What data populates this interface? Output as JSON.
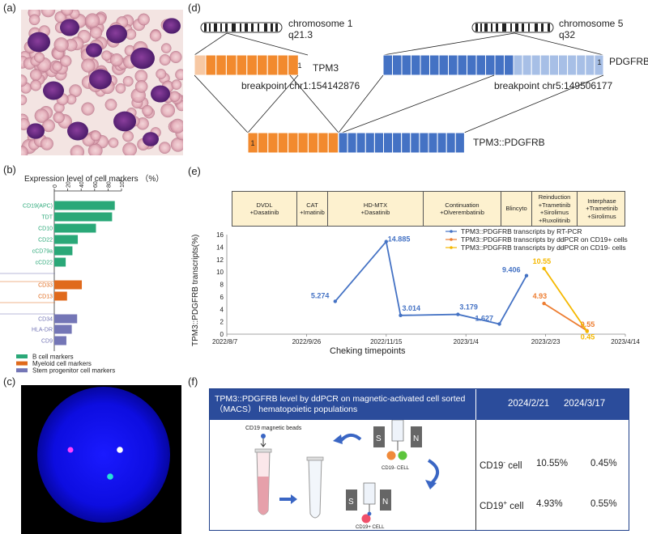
{
  "panels": {
    "a": "(a)",
    "b": "(b)",
    "c": "(c)",
    "d": "(d)",
    "e": "(e)",
    "f": "(f)"
  },
  "colors": {
    "green": "#2aa878",
    "orange": "#e06a1c",
    "purple": "#7476b6",
    "gene_orange": "#f28a2e",
    "gene_blue": "#4472c4",
    "line_blue": "#4472c4",
    "line_orange": "#ed7d31",
    "line_yellow": "#f5b800",
    "header_blue": "#2b4c9b"
  },
  "panel_b": {
    "title": "Expression level of cell markers  （%）",
    "axis_ticks": [
      "0",
      "20",
      "40",
      "60",
      "80",
      "100"
    ],
    "bars": [
      {
        "label": "CD19(APC)",
        "value": 90,
        "group": "green"
      },
      {
        "label": "TDT",
        "value": 86,
        "group": "green"
      },
      {
        "label": "CD10",
        "value": 62,
        "group": "green"
      },
      {
        "label": "CD22",
        "value": 35,
        "group": "green"
      },
      {
        "label": "cCD79a",
        "value": 27,
        "group": "green"
      },
      {
        "label": "cCD22",
        "value": 17,
        "group": "green"
      },
      {
        "label": "CD33",
        "value": 41,
        "group": "orange"
      },
      {
        "label": "CD13",
        "value": 19,
        "group": "orange"
      },
      {
        "label": "CD34",
        "value": 34,
        "group": "purple"
      },
      {
        "label": "HLA-DR",
        "value": 26,
        "group": "purple"
      },
      {
        "label": "CD9",
        "value": 18,
        "group": "purple"
      }
    ],
    "legend": [
      "B cell markers",
      "Myeloid cell markers",
      "Stem progenitor cell markers"
    ]
  },
  "panel_d": {
    "chr1": "chromosome 1",
    "chr1_band": "q21.3",
    "chr5": "chromosome 5",
    "chr5_band": "q32",
    "gene1": "TPM3",
    "gene2": "PDGFRB",
    "fusion": "TPM3::PDGFRB",
    "bp1": "breakpoint chr1:154142876",
    "bp2": "breakpoint chr5:149506177",
    "exon_num": "1"
  },
  "panel_e": {
    "timeline": [
      {
        "label": "DVDL\n+Dasatinib"
      },
      {
        "label": "CAT\n+Imatinib"
      },
      {
        "label": "HD-MTX\n+Dasatinib"
      },
      {
        "label": "Continuation\n+Olverembatinib"
      },
      {
        "label": "Blincyto"
      },
      {
        "label": "Reinduction\n+Trametinib\n+Sirolimus\n+Ruxolitinib"
      },
      {
        "label": "Interphase\n+Trametinib\n+Sirolimus"
      }
    ]
  },
  "chart_data": {
    "type": "line",
    "title": "",
    "xlabel": "Cheking timepoints",
    "ylabel": "TPM3::PDGFRB transcripts(%)",
    "ylim": [
      0,
      16
    ],
    "y_ticks": [
      "0",
      "2",
      "4",
      "6",
      "8",
      "10",
      "12",
      "14",
      "16"
    ],
    "x_tick_labels": [
      "2022/8/7",
      "2022/9/26",
      "2022/11/15",
      "2023/1/4",
      "2023/2/23",
      "2023/4/14"
    ],
    "x_tick_days": [
      0,
      50,
      100,
      150,
      200,
      250
    ],
    "series": [
      {
        "name": "TPM3::PDGFRB transcripts by RT-PCR",
        "color": "#4472c4",
        "x_days": [
          68,
          100,
          109,
          145,
          171,
          188
        ],
        "values": [
          5.274,
          14.885,
          3.014,
          3.179,
          1.627,
          9.406
        ],
        "labels": [
          "5.274",
          "14.885",
          "3.014",
          "3.179",
          "1.627",
          "9.406"
        ]
      },
      {
        "name": "TPM3::PDGFRB transcripts by ddPCR on CD19+ cells",
        "color": "#ed7d31",
        "x_days": [
          199,
          226
        ],
        "values": [
          4.93,
          0.55
        ],
        "labels": [
          "4.93",
          "0.55"
        ]
      },
      {
        "name": "TPM3::PDGFRB transcripts by ddPCR on CD19-  cells",
        "color": "#f5b800",
        "x_days": [
          199,
          226
        ],
        "values": [
          10.55,
          0.45
        ],
        "labels": [
          "10.55",
          "0.45"
        ]
      }
    ]
  },
  "panel_f": {
    "header": "TPM3::PDGFRB level by ddPCR on magnetic-activated cell sorted （MACS） hematopoietic populations",
    "date1": "2024/2/21",
    "date2": "2024/3/17",
    "row1_label": "CD19",
    "row1_sup": "-",
    "row1_suffix": " cell",
    "row1_v1": "10.55%",
    "row1_v2": "0.45%",
    "row2_label": "CD19",
    "row2_sup": "+",
    "row2_suffix": " cell",
    "row2_v1": "4.93%",
    "row2_v2": "0.55%",
    "beads_label": "CD19 magnetic beads",
    "cell_minus": "CD19- CELL",
    "cell_plus": "CD19+ CELL",
    "s": "S",
    "n": "N"
  }
}
